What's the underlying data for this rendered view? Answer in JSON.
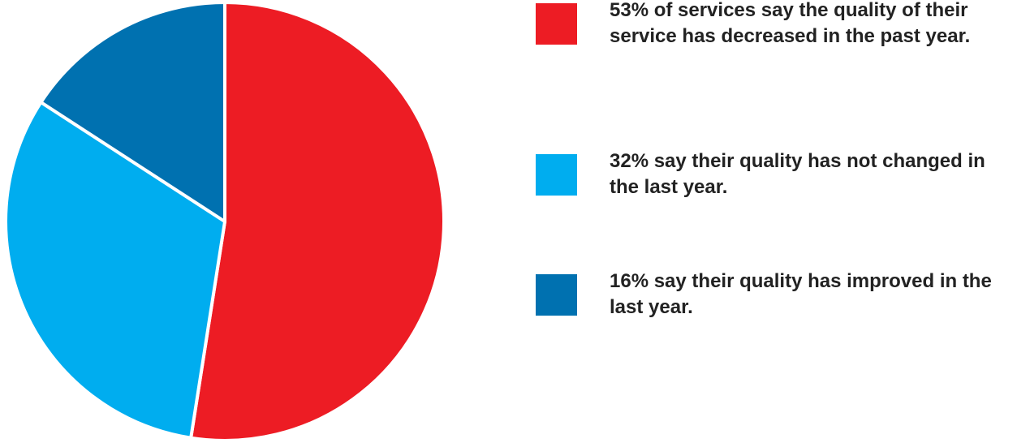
{
  "chart_data": {
    "type": "pie",
    "title": "",
    "slices": [
      {
        "label": "53% of services say the quality of their service has decreased in the past year.",
        "value": 53,
        "color": "#ed1c24"
      },
      {
        "label": "32% say their quality has not changed in the last year.",
        "value": 32,
        "color": "#00adef"
      },
      {
        "label": "16% say their quality has improved in the last year.",
        "value": 16,
        "color": "#0071b0"
      }
    ],
    "start_angle_deg": 0,
    "direction": "clockwise",
    "legend_position": "right"
  }
}
